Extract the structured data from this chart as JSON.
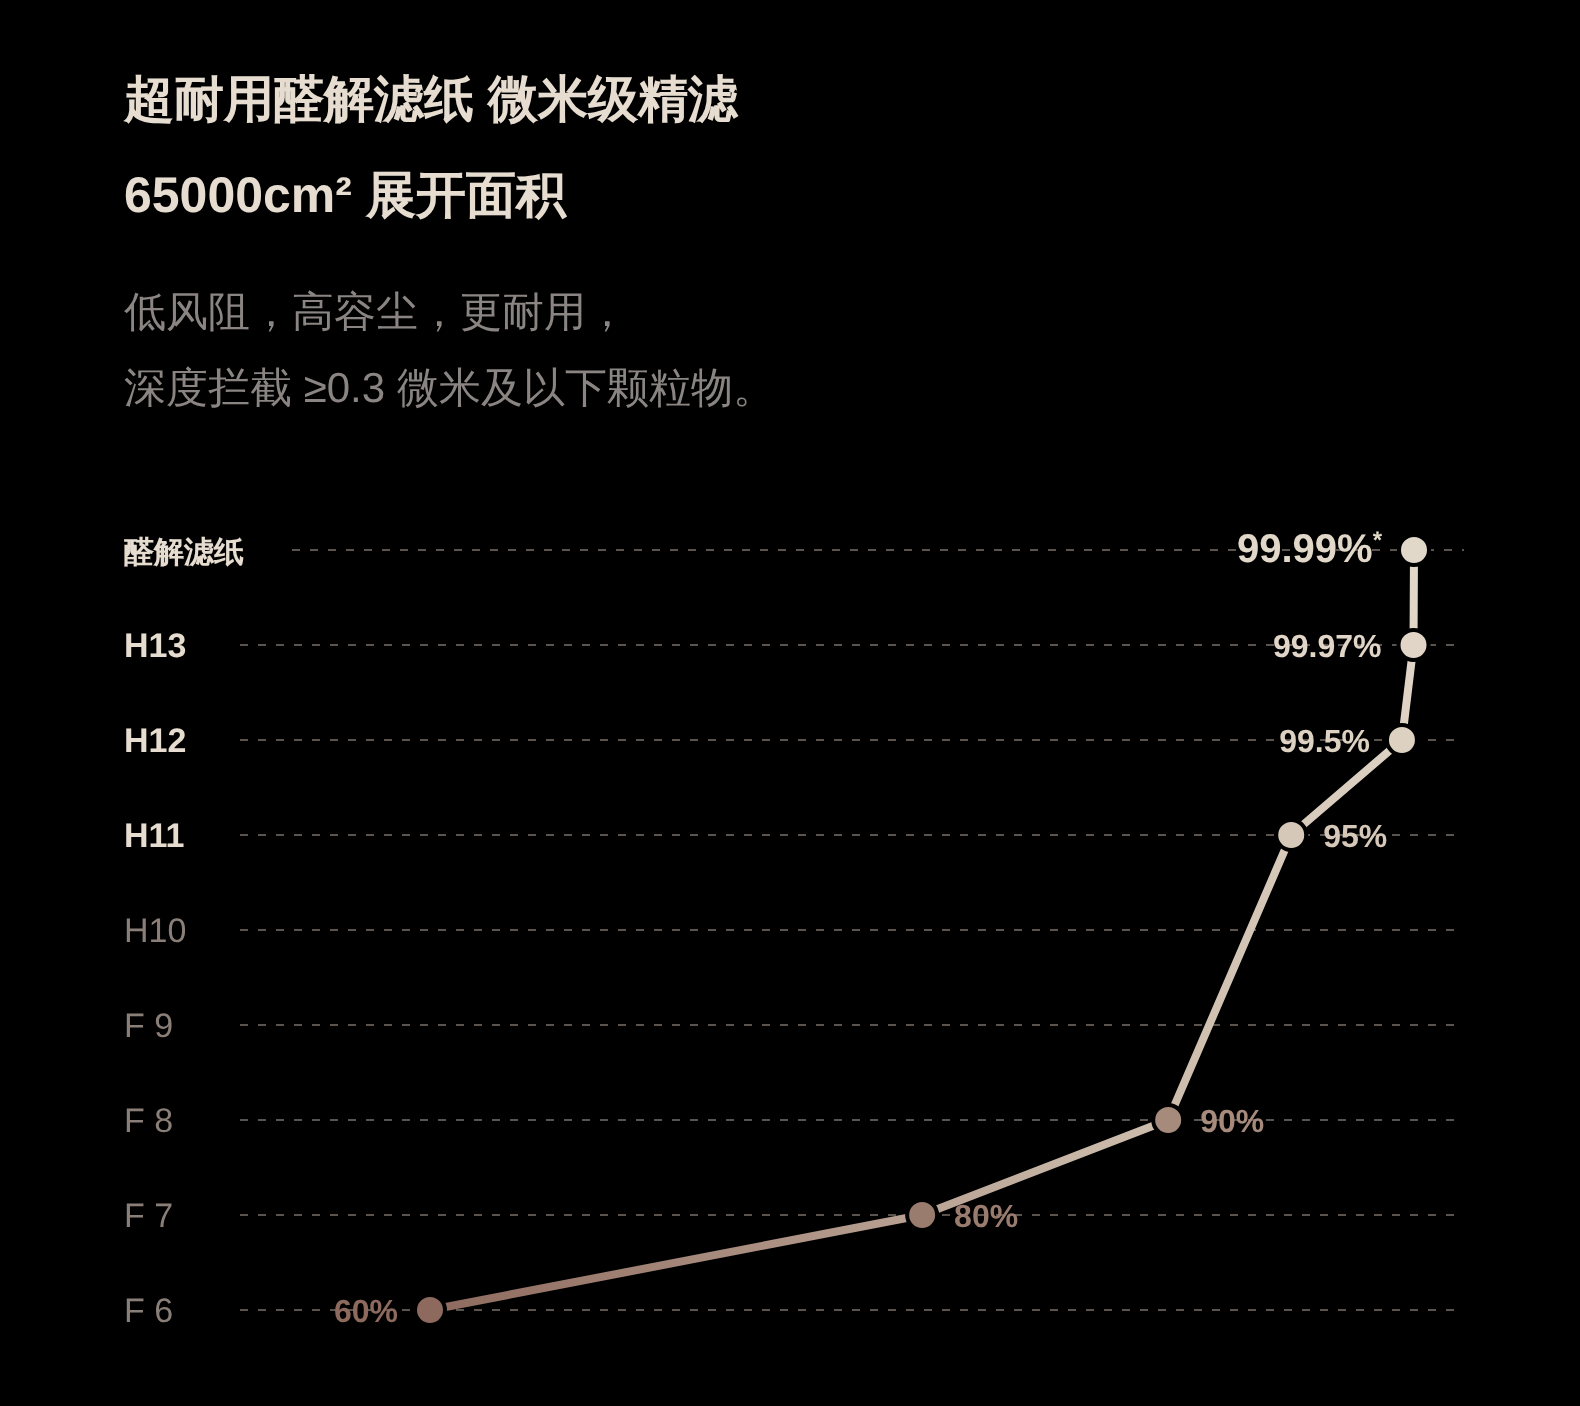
{
  "chart_data": {
    "type": "line",
    "orientation": "horizontal",
    "tick_labels": "y",
    "title": "超耐用醛解滤纸 微米级精滤",
    "subtitle": "65000cm² 展开面积",
    "annotations": [
      "低风阻，高容尘，更耐用，",
      "深度拦截 ≥0.3 微米及以下颗粒物。"
    ],
    "categories": [
      "醛解滤纸",
      "H13",
      "H12",
      "H11",
      "H10",
      "F 9",
      "F 8",
      "F 7",
      "F 6"
    ],
    "series": [
      {
        "color": "#c9b8a8",
        "colors": [
          "#e2d8ca",
          "#e0d5c6",
          "#ddd1c2",
          "#d6c8b8",
          null,
          null,
          "#a68a7c",
          "#9a7c6f",
          "#8e6a5e"
        ],
        "values": [
          99.99,
          99.97,
          99.5,
          95,
          null,
          null,
          90,
          80,
          60
        ],
        "value_labels": [
          "99.99%$^{*}$",
          "99.97%",
          "99.5%",
          "95%",
          null,
          null,
          "90%",
          "80%",
          "60%"
        ]
      }
    ],
    "grid": "y",
    "marker": "circle",
    "line_style": "solid"
  }
}
